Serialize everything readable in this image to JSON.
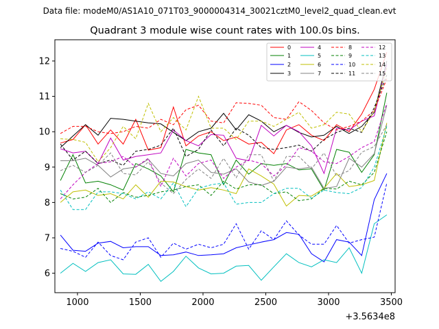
{
  "chart_data": {
    "type": "line",
    "suptitle": "Data file: modeM0/AS1A10_071T03_9000004314_30021cztM0_level2_quad_clean.evt",
    "title": "Quadrant 3 module wise count rates with 100.0s bins.",
    "xlabel": "",
    "ylabel": "",
    "x_offset_label": "+3.5634e8",
    "xlim": [
      820,
      3530
    ],
    "ylim": [
      5.45,
      12.6
    ],
    "x_ticks": [
      1000,
      1500,
      2000,
      2500,
      3000,
      3500
    ],
    "x_tick_labels": [
      "1000",
      "1500",
      "2000",
      "2500",
      "3000",
      "3500"
    ],
    "y_ticks": [
      6,
      7,
      8,
      9,
      10,
      11,
      12
    ],
    "y_tick_labels": [
      "6",
      "7",
      "8",
      "9",
      "10",
      "11",
      "12"
    ],
    "grid": false,
    "legend_placement": "top-right",
    "x": [
      864,
      964,
      1064,
      1164,
      1264,
      1364,
      1464,
      1564,
      1664,
      1764,
      1864,
      1964,
      2064,
      2164,
      2264,
      2364,
      2464,
      2564,
      2664,
      2764,
      2864,
      2964,
      3064,
      3164,
      3264,
      3364,
      3464
    ],
    "series": [
      {
        "name": "0",
        "color": "#ff0000",
        "dash": "solid",
        "values": [
          9.68,
          9.78,
          10.2,
          9.65,
          10.05,
          9.65,
          10.35,
          9.48,
          9.55,
          10.7,
          9.6,
          9.88,
          10.0,
          9.75,
          9.85,
          9.65,
          9.7,
          9.38,
          10.05,
          10.2,
          9.9,
          9.75,
          10.2,
          10.0,
          10.5,
          11.2,
          12.25
        ]
      },
      {
        "name": "1",
        "color": "#008000",
        "dash": "solid",
        "values": [
          8.62,
          9.35,
          8.55,
          8.6,
          8.5,
          8.35,
          9.1,
          8.95,
          8.75,
          8.3,
          9.5,
          9.4,
          9.35,
          8.5,
          9.2,
          8.8,
          9.1,
          9.05,
          9.1,
          8.92,
          8.95,
          8.35,
          9.5,
          9.42,
          8.85,
          9.35,
          11.1
        ]
      },
      {
        "name": "2",
        "color": "#0000ff",
        "dash": "solid",
        "values": [
          7.08,
          6.65,
          6.62,
          6.85,
          6.9,
          6.72,
          6.75,
          6.75,
          6.5,
          6.52,
          6.6,
          6.5,
          6.52,
          6.55,
          6.72,
          6.8,
          6.88,
          6.95,
          7.15,
          7.1,
          6.55,
          6.32,
          6.95,
          6.88,
          6.5,
          8.08,
          8.82
        ]
      },
      {
        "name": "3",
        "color": "#000000",
        "dash": "solid",
        "values": [
          9.55,
          9.88,
          10.2,
          9.9,
          10.38,
          10.35,
          10.3,
          10.25,
          10.22,
          9.98,
          9.75,
          10.0,
          10.1,
          10.52,
          10.05,
          10.48,
          10.3,
          10.0,
          10.18,
          9.98,
          9.85,
          9.9,
          10.15,
          9.95,
          10.15,
          10.55,
          12.0
        ]
      },
      {
        "name": "4",
        "color": "#bf00bf",
        "dash": "solid",
        "values": [
          9.52,
          9.4,
          9.45,
          9.1,
          9.82,
          9.2,
          9.3,
          9.35,
          9.4,
          10.05,
          9.75,
          9.6,
          9.92,
          9.9,
          9.25,
          9.18,
          10.18,
          9.88,
          10.18,
          10.0,
          9.6,
          8.82,
          10.1,
          10.05,
          10.3,
          10.45,
          11.9
        ]
      },
      {
        "name": "5",
        "color": "#00bfbf",
        "dash": "solid",
        "values": [
          6.0,
          6.28,
          6.05,
          6.3,
          6.38,
          5.98,
          5.97,
          6.25,
          5.77,
          6.05,
          6.48,
          6.15,
          5.98,
          6.0,
          6.2,
          6.22,
          5.8,
          6.18,
          6.55,
          6.3,
          6.18,
          6.38,
          6.3,
          6.72,
          6.0,
          7.4,
          7.65
        ]
      },
      {
        "name": "6",
        "color": "#bfbf00",
        "dash": "solid",
        "values": [
          8.0,
          8.3,
          8.35,
          8.2,
          8.25,
          8.1,
          8.5,
          8.15,
          8.6,
          8.58,
          8.45,
          8.35,
          8.42,
          8.35,
          8.25,
          8.95,
          8.75,
          8.52,
          7.9,
          8.2,
          8.18,
          8.4,
          8.82,
          8.45,
          8.5,
          8.62,
          10.25
        ]
      },
      {
        "name": "7",
        "color": "#808080",
        "dash": "solid",
        "values": [
          9.18,
          9.18,
          9.25,
          9.05,
          8.72,
          8.95,
          9.0,
          9.22,
          8.82,
          8.75,
          9.1,
          9.2,
          8.85,
          8.8,
          8.95,
          8.58,
          8.48,
          8.6,
          9.0,
          8.95,
          9.0,
          8.4,
          8.45,
          9.25,
          9.0,
          9.38,
          10.75
        ]
      },
      {
        "name": "8",
        "color": "#ff0000",
        "dash": "dashed",
        "values": [
          9.95,
          10.15,
          10.15,
          10.0,
          9.95,
          10.0,
          10.15,
          10.1,
          10.35,
          10.2,
          10.62,
          10.75,
          10.3,
          10.25,
          10.82,
          10.8,
          10.75,
          10.4,
          10.35,
          10.85,
          10.6,
          10.25,
          10.05,
          10.15,
          10.3,
          10.6,
          11.5
        ]
      },
      {
        "name": "9",
        "color": "#008000",
        "dash": "dashed",
        "values": [
          8.25,
          8.1,
          8.15,
          8.4,
          8.0,
          8.28,
          8.15,
          8.2,
          8.3,
          8.35,
          8.45,
          8.5,
          8.2,
          8.6,
          8.38,
          8.5,
          8.5,
          8.25,
          8.3,
          8.05,
          8.1,
          8.4,
          8.38,
          8.6,
          8.5,
          8.85,
          10.0
        ]
      },
      {
        "name": "10",
        "color": "#0000ff",
        "dash": "dashed",
        "values": [
          6.7,
          6.62,
          6.45,
          6.88,
          6.5,
          6.38,
          6.88,
          7.0,
          6.45,
          6.85,
          6.68,
          6.82,
          6.72,
          6.82,
          7.4,
          6.68,
          7.2,
          6.95,
          7.48,
          7.08,
          6.82,
          6.82,
          7.35,
          6.85,
          6.95,
          7.02,
          8.55
        ]
      },
      {
        "name": "11",
        "color": "#000000",
        "dash": "dashed",
        "values": [
          9.65,
          9.2,
          9.45,
          9.1,
          9.2,
          9.05,
          9.45,
          9.5,
          9.62,
          10.1,
          9.3,
          9.5,
          10.05,
          9.6,
          10.1,
          9.9,
          9.55,
          9.5,
          9.55,
          9.62,
          9.45,
          9.78,
          9.98,
          10.1,
          9.98,
          10.68,
          11.6
        ]
      },
      {
        "name": "12",
        "color": "#bf00bf",
        "dash": "dashed",
        "values": [
          8.1,
          8.5,
          8.85,
          9.1,
          9.15,
          9.3,
          9.0,
          9.25,
          8.45,
          9.25,
          8.75,
          9.1,
          9.2,
          8.68,
          9.0,
          9.2,
          9.1,
          8.75,
          9.05,
          9.55,
          9.45,
          9.15,
          9.1,
          9.3,
          9.55,
          9.72,
          10.8
        ]
      },
      {
        "name": "13",
        "color": "#00bfbf",
        "dash": "dashed",
        "values": [
          8.35,
          7.8,
          7.8,
          8.3,
          8.3,
          8.25,
          8.1,
          8.3,
          8.1,
          8.55,
          7.88,
          8.4,
          8.5,
          8.55,
          7.95,
          8.0,
          8.0,
          8.25,
          8.4,
          8.4,
          8.12,
          8.35,
          8.28,
          8.25,
          8.42,
          9.0,
          10.15
        ]
      },
      {
        "name": "14",
        "color": "#bfbf00",
        "dash": "dashed",
        "values": [
          9.8,
          9.78,
          9.7,
          9.15,
          9.55,
          10.15,
          9.8,
          10.8,
          10.0,
          10.4,
          10.05,
          11.0,
          10.1,
          10.1,
          9.78,
          10.3,
          10.3,
          10.15,
          10.35,
          10.55,
          10.1,
          10.2,
          10.55,
          10.5,
          10.0,
          10.58,
          11.8
        ]
      },
      {
        "name": "15",
        "color": "#808080",
        "dash": "dashed",
        "values": [
          8.9,
          9.05,
          8.85,
          9.05,
          9.4,
          8.82,
          8.78,
          9.15,
          8.55,
          8.25,
          8.65,
          8.95,
          8.68,
          9.25,
          8.7,
          9.35,
          9.35,
          8.6,
          9.3,
          9.3,
          8.95,
          9.4,
          8.75,
          8.9,
          9.42,
          9.58,
          10.2
        ]
      }
    ]
  }
}
